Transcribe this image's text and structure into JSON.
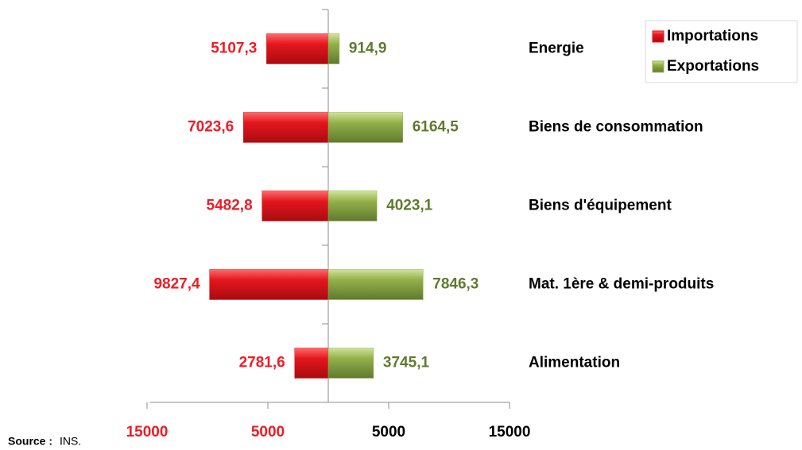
{
  "chart_data": {
    "type": "butterfly",
    "categories": [
      "Energie",
      "Biens de consommation",
      "Biens d'équipement",
      "Mat. 1ère & demi-produits",
      "Alimentation"
    ],
    "series": [
      {
        "name": "Importations",
        "color": "#e3161d",
        "label_color": "#ee1c25",
        "values": [
          -5107.3,
          -7023.6,
          -5482.8,
          -9827.4,
          -2781.6
        ],
        "value_labels": [
          "5107,3",
          "7023,6",
          "5482,8",
          "9827,4",
          "2781,6"
        ]
      },
      {
        "name": "Exportations",
        "color": "#93b04a",
        "label_color": "#5f7a2e",
        "values": [
          914.9,
          6164.5,
          4023.1,
          7846.3,
          3745.1
        ],
        "value_labels": [
          "914,9",
          "6164,5",
          "4023,1",
          "7846,3",
          "3745,1"
        ]
      }
    ],
    "xlim": [
      -15000,
      15000
    ],
    "xticks": [
      {
        "value": -15000,
        "label": "15000"
      },
      {
        "value": -5000,
        "label": "5000"
      },
      5000,
      15000
    ],
    "grid": false,
    "legend": "top-right",
    "source_label": "Source :",
    "source": "INS."
  }
}
